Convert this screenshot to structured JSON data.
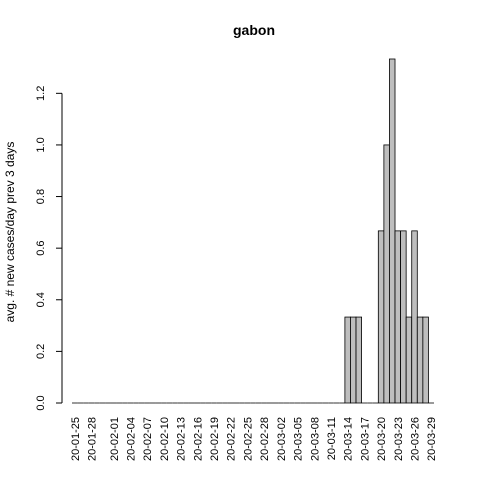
{
  "chart_data": {
    "type": "bar",
    "title": "gabon",
    "xlabel": "",
    "ylabel": "avg. # new cases/day prev  3  days",
    "ylim": [
      0,
      1.333
    ],
    "yticks": [
      "0.0",
      "0.2",
      "0.4",
      "0.6",
      "0.8",
      "1.0",
      "1.2"
    ],
    "ytick_values": [
      0,
      0.2,
      0.4,
      0.6,
      0.8,
      1.0,
      1.2
    ],
    "xtick_labels": [
      "20-01-25",
      "20-01-28",
      "20-02-01",
      "20-02-04",
      "20-02-07",
      "20-02-10",
      "20-02-13",
      "20-02-16",
      "20-02-19",
      "20-02-22",
      "20-02-25",
      "20-02-28",
      "20-03-02",
      "20-03-05",
      "20-03-08",
      "20-03-11",
      "20-03-14",
      "20-03-17",
      "20-03-20",
      "20-03-23",
      "20-03-26",
      "20-03-29"
    ],
    "xtick_index": [
      0,
      3,
      7,
      10,
      13,
      16,
      19,
      22,
      25,
      28,
      31,
      34,
      37,
      40,
      43,
      46,
      49,
      52,
      55,
      58,
      61,
      64
    ],
    "categories": [
      "20-01-25",
      "20-01-26",
      "20-01-27",
      "20-01-28",
      "20-01-29",
      "20-01-30",
      "20-01-31",
      "20-02-01",
      "20-02-02",
      "20-02-03",
      "20-02-04",
      "20-02-05",
      "20-02-06",
      "20-02-07",
      "20-02-08",
      "20-02-09",
      "20-02-10",
      "20-02-11",
      "20-02-12",
      "20-02-13",
      "20-02-14",
      "20-02-15",
      "20-02-16",
      "20-02-17",
      "20-02-18",
      "20-02-19",
      "20-02-20",
      "20-02-21",
      "20-02-22",
      "20-02-23",
      "20-02-24",
      "20-02-25",
      "20-02-26",
      "20-02-27",
      "20-02-28",
      "20-02-29",
      "20-03-01",
      "20-03-02",
      "20-03-03",
      "20-03-04",
      "20-03-05",
      "20-03-06",
      "20-03-07",
      "20-03-08",
      "20-03-09",
      "20-03-10",
      "20-03-11",
      "20-03-12",
      "20-03-13",
      "20-03-14",
      "20-03-15",
      "20-03-16",
      "20-03-17",
      "20-03-18",
      "20-03-19",
      "20-03-20",
      "20-03-21",
      "20-03-22",
      "20-03-23",
      "20-03-24",
      "20-03-25",
      "20-03-26",
      "20-03-27",
      "20-03-28",
      "20-03-29"
    ],
    "values": [
      0,
      0,
      0,
      0,
      0,
      0,
      0,
      0,
      0,
      0,
      0,
      0,
      0,
      0,
      0,
      0,
      0,
      0,
      0,
      0,
      0,
      0,
      0,
      0,
      0,
      0,
      0,
      0,
      0,
      0,
      0,
      0,
      0,
      0,
      0,
      0,
      0,
      0,
      0,
      0,
      0,
      0,
      0,
      0,
      0,
      0,
      0,
      0,
      0,
      0.333,
      0.333,
      0.333,
      0,
      0,
      0,
      0.667,
      1.0,
      1.333,
      0.667,
      0.667,
      0.333,
      0.667,
      0.333,
      0.333,
      0
    ],
    "grid": false,
    "legend": "none"
  }
}
